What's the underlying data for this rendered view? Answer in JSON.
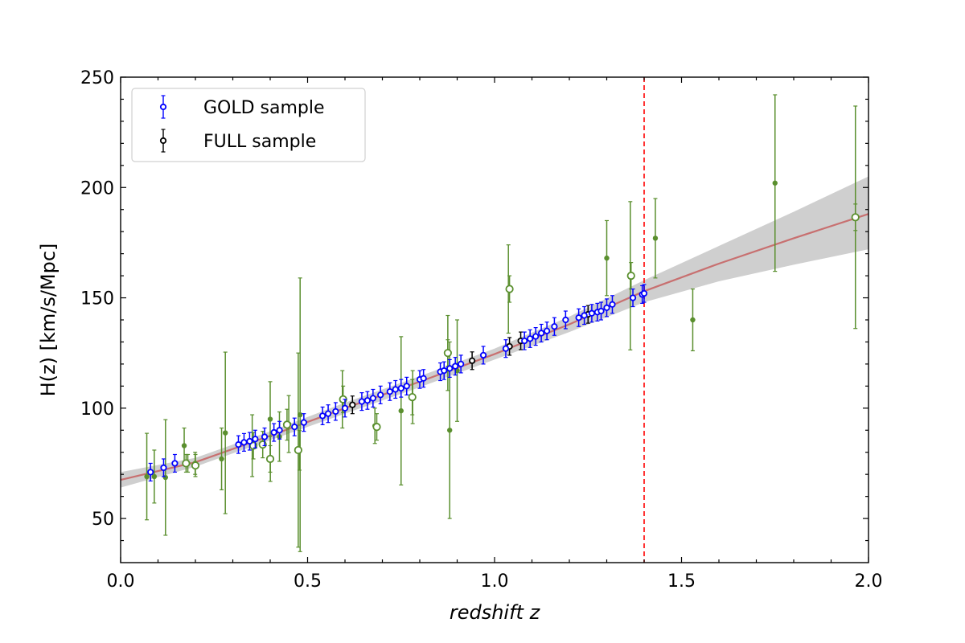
{
  "chart_data": {
    "type": "scatter",
    "xlabel": "redshift z",
    "ylabel": "H(z) [km/s/Mpc]",
    "xlim": [
      0.0,
      2.0
    ],
    "ylim": [
      30,
      250
    ],
    "xticks": [
      0.0,
      0.5,
      1.0,
      1.5,
      2.0
    ],
    "xtick_labels": [
      "0.0",
      "0.5",
      "1.0",
      "1.5",
      "2.0"
    ],
    "yticks": [
      50,
      100,
      150,
      200,
      250
    ],
    "ytick_labels": [
      "50",
      "100",
      "150",
      "200",
      "250"
    ],
    "grid": false,
    "legend_position": "top-left",
    "vline": {
      "x": 1.4,
      "color": "#ff0000",
      "style": "dashed"
    },
    "fit": {
      "name": "fit",
      "color": "#c87070",
      "band_color": "#cfcfcf",
      "z": [
        0.0,
        0.2,
        0.4,
        0.6,
        0.8,
        1.0,
        1.2,
        1.4,
        1.6,
        1.8,
        2.0
      ],
      "h": [
        67.5,
        75.5,
        87.5,
        100.0,
        112.0,
        124.5,
        138.0,
        153.0,
        165.5,
        177.0,
        188.0
      ],
      "lower": [
        64.0,
        73.5,
        85.5,
        97.5,
        109.5,
        122.0,
        134.5,
        148.0,
        157.5,
        165.0,
        172.0
      ],
      "upper": [
        71.0,
        77.5,
        89.5,
        102.5,
        114.5,
        127.0,
        141.5,
        158.0,
        173.5,
        189.0,
        205.0
      ]
    },
    "series": [
      {
        "name": "GOLD sample",
        "color": "#0000ff",
        "marker": "open-circle",
        "in_legend": true,
        "err": 4,
        "z": [
          0.08,
          0.115,
          0.145,
          0.315,
          0.33,
          0.345,
          0.36,
          0.385,
          0.41,
          0.425,
          0.465,
          0.49,
          0.54,
          0.555,
          0.575,
          0.6,
          0.645,
          0.66,
          0.675,
          0.695,
          0.72,
          0.735,
          0.75,
          0.765,
          0.8,
          0.81,
          0.855,
          0.865,
          0.88,
          0.895,
          0.91,
          0.97,
          1.03,
          1.08,
          1.095,
          1.11,
          1.125,
          1.14,
          1.16,
          1.19,
          1.225,
          1.24,
          1.26,
          1.275,
          1.285,
          1.3,
          1.315,
          1.37,
          1.395,
          1.4
        ],
        "h": [
          71,
          73,
          75,
          83.5,
          84.5,
          85,
          86,
          87,
          89,
          90,
          91.5,
          93.5,
          96.5,
          97.5,
          98.5,
          100,
          103,
          103.5,
          104.5,
          106,
          107.5,
          108.5,
          109,
          110,
          113,
          113.5,
          116.5,
          117,
          118,
          119,
          120,
          124,
          127,
          130.5,
          131.5,
          132.5,
          134,
          135,
          137,
          140,
          141,
          142,
          143,
          143.5,
          144,
          145.5,
          147,
          150,
          151.5,
          152
        ]
      },
      {
        "name": "FULL sample",
        "color": "#000000",
        "marker": "open-circle",
        "in_legend": true,
        "err": 4,
        "z": [
          0.62,
          0.94,
          1.04,
          1.07,
          1.25
        ],
        "h": [
          101.5,
          121.5,
          128,
          130.5,
          142.5
        ]
      },
      {
        "name": "cosmic chronometers (filled)",
        "color": "#5a8f2e",
        "marker": "filled-circle",
        "in_legend": false,
        "z": [
          0.07,
          0.09,
          0.12,
          0.17,
          0.1797,
          0.1993,
          0.27,
          0.28,
          0.3519,
          0.4,
          0.4004,
          0.4247,
          0.4497,
          0.4783,
          0.48,
          0.593,
          0.68,
          0.75,
          0.781,
          0.875,
          0.88,
          0.9,
          1.037,
          1.3,
          1.363,
          1.43,
          1.53,
          1.75,
          1.965
        ],
        "h": [
          69,
          69,
          68.6,
          83,
          75,
          75,
          77,
          88.8,
          83,
          95,
          77,
          87.1,
          92.8,
          80.9,
          97,
          104,
          92,
          98.8,
          105,
          125,
          90,
          117,
          154,
          168,
          160,
          177,
          140,
          202,
          186.5
        ],
        "err": [
          19.6,
          12,
          26.2,
          8,
          4,
          5,
          14,
          36.6,
          14,
          17,
          10.2,
          11.2,
          12.9,
          9,
          62,
          13,
          8,
          33.6,
          12,
          17,
          40,
          23,
          20,
          17,
          33.6,
          18,
          14,
          40,
          50.4
        ]
      },
      {
        "name": "BAO (open)",
        "color": "#5a8f2e",
        "marker": "open-circle",
        "in_legend": false,
        "z": [
          0.175,
          0.2,
          0.355,
          0.38,
          0.4,
          0.445,
          0.475,
          0.595,
          0.685,
          0.78,
          0.875,
          1.04,
          1.365,
          1.965
        ],
        "h": [
          75,
          74,
          83,
          83.5,
          77,
          92.5,
          81,
          104,
          91.5,
          105,
          125,
          154,
          160,
          186.5
        ],
        "err": [
          4,
          5,
          6,
          6,
          6,
          7,
          44,
          6,
          6,
          8,
          6,
          6,
          6,
          6
        ]
      }
    ]
  }
}
